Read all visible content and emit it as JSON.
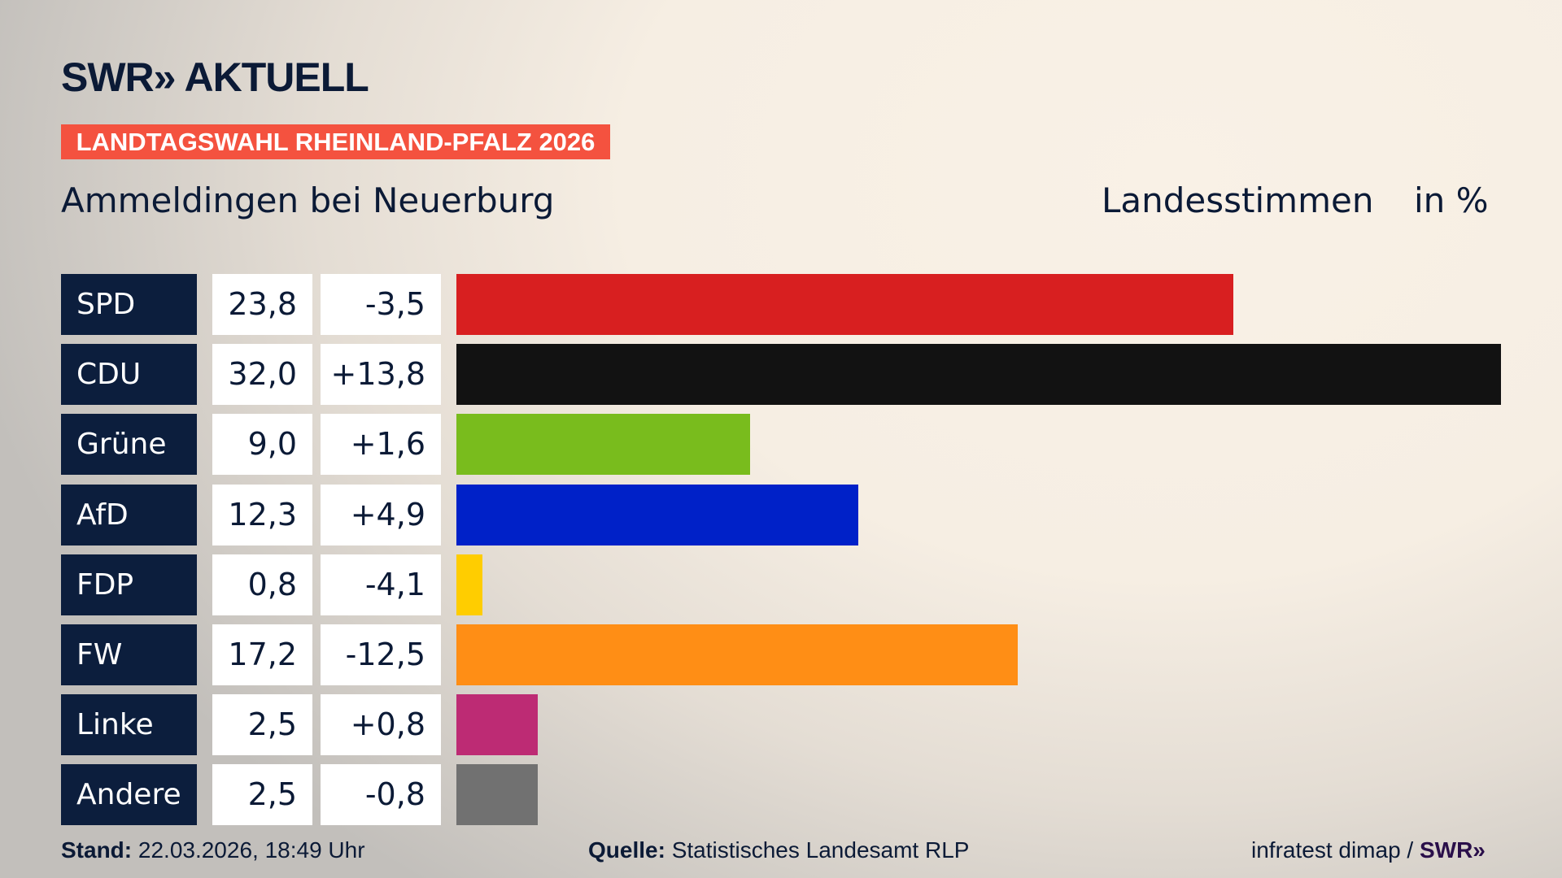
{
  "logo": "SWR» AKTUELL",
  "banner": "LANDTAGSWAHL RHEINLAND-PFALZ 2026",
  "location": "Ammeldingen bei Neuerburg",
  "vote_type": "Landesstimmen",
  "unit": "in %",
  "chart_data": {
    "type": "bar",
    "orientation": "horizontal",
    "categories": [
      "SPD",
      "CDU",
      "Grüne",
      "AfD",
      "FDP",
      "FW",
      "Linke",
      "Andere"
    ],
    "values": [
      23.8,
      32.0,
      9.0,
      12.3,
      0.8,
      17.2,
      2.5,
      2.5
    ],
    "value_labels": [
      "23,8",
      "32,0",
      "9,0",
      "12,3",
      "0,8",
      "17,2",
      "2,5",
      "2,5"
    ],
    "diff_labels": [
      "-3,5",
      "+13,8",
      "+1,6",
      "+4,9",
      "-4,1",
      "-12,5",
      "+0,8",
      "-0,8"
    ],
    "colors": [
      "#d81f20",
      "#121212",
      "#79bc1d",
      "#0021c8",
      "#ffcd00",
      "#ff8e15",
      "#bd2b74",
      "#717171"
    ],
    "xlim": [
      0,
      32.0
    ]
  },
  "footer": {
    "stand_label": "Stand:",
    "stand": "22.03.2026, 18:49 Uhr",
    "source_label": "Quelle:",
    "source": "Statistisches Landesamt RLP",
    "credit": "infratest dimap /",
    "credit_logo": "SWR»"
  }
}
